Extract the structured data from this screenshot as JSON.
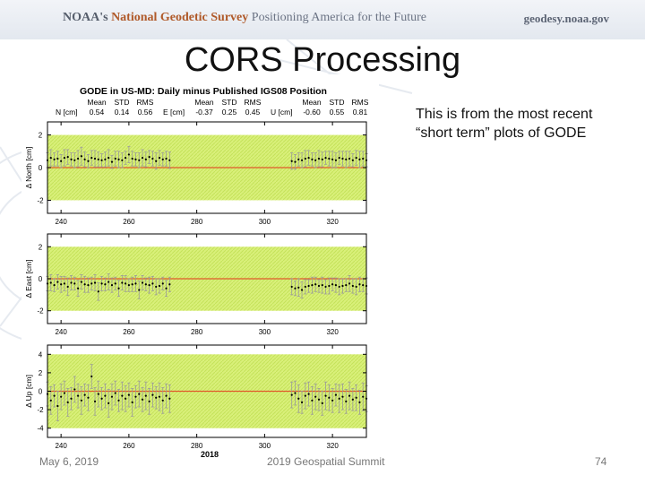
{
  "header": {
    "org_noaa": "NOAA's",
    "org_ngs": "National Geodetic Survey",
    "tagline": "Positioning America for the Future",
    "site": "geodesy.noaa.gov"
  },
  "slide": {
    "title": "CORS Processing",
    "note_line1": "This is from the most recent",
    "note_line2": "“short term” plots of GODE"
  },
  "footer": {
    "date": "May 6, 2019",
    "event": "2019 Geospatial Summit",
    "page": "74"
  },
  "colors": {
    "band": "#d9f07a",
    "zero_line": "#e05a2a",
    "points": "#000000",
    "error_bars": "#9a9a9a"
  },
  "chart_data": {
    "type": "scatter",
    "title": "GODE in US-MD: Daily minus Published IGS08 Position",
    "xlabel": "2018",
    "x_ticks": [
      240,
      260,
      280,
      300,
      320
    ],
    "xlim": [
      236,
      330
    ],
    "stats_header": {
      "mean": "Mean",
      "std": "STD",
      "rms": "RMS"
    },
    "panels": [
      {
        "id": "north",
        "ylabel": "Δ North  [cm]",
        "stat_label": "N [cm]",
        "mean": "0.54",
        "std": "0.14",
        "rms": "0.56",
        "ylim": [
          -2.8,
          2.8
        ],
        "y_ticks": [
          -2,
          0,
          2
        ],
        "band": [
          -2,
          2
        ],
        "x": [
          236,
          237,
          238,
          239,
          240,
          241,
          242,
          243,
          244,
          245,
          246,
          247,
          248,
          249,
          250,
          251,
          252,
          253,
          254,
          255,
          256,
          257,
          258,
          259,
          260,
          261,
          262,
          263,
          264,
          265,
          266,
          267,
          268,
          269,
          270,
          271,
          272,
          308,
          309,
          310,
          311,
          312,
          313,
          314,
          315,
          316,
          317,
          318,
          319,
          320,
          321,
          322,
          323,
          324,
          325,
          326,
          327,
          328,
          329,
          330
        ],
        "y": [
          0.45,
          0.6,
          0.5,
          0.55,
          0.4,
          0.6,
          0.65,
          0.5,
          0.45,
          0.55,
          0.7,
          0.5,
          0.4,
          0.6,
          0.55,
          0.5,
          0.45,
          0.5,
          0.6,
          0.35,
          0.55,
          0.5,
          0.45,
          0.6,
          0.8,
          0.55,
          0.5,
          0.45,
          0.6,
          0.5,
          0.65,
          0.55,
          0.4,
          0.6,
          0.5,
          0.55,
          0.45,
          0.4,
          0.35,
          0.5,
          0.45,
          0.55,
          0.6,
          0.5,
          0.45,
          0.55,
          0.5,
          0.6,
          0.55,
          0.5,
          0.45,
          0.6,
          0.55,
          0.5,
          0.55,
          0.45,
          0.6,
          0.5,
          0.55,
          0.45
        ],
        "err": [
          0.45,
          0.5,
          0.4,
          0.45,
          0.4,
          0.5,
          0.45,
          0.4,
          0.45,
          0.5,
          0.55,
          0.45,
          0.4,
          0.45,
          0.5,
          0.45,
          0.4,
          0.45,
          0.5,
          0.4,
          0.45,
          0.5,
          0.45,
          0.4,
          0.5,
          0.45,
          0.4,
          0.45,
          0.5,
          0.45,
          0.4,
          0.45,
          0.5,
          0.45,
          0.4,
          0.45,
          0.5,
          0.5,
          0.45,
          0.4,
          0.45,
          0.5,
          0.45,
          0.4,
          0.45,
          0.5,
          0.45,
          0.4,
          0.45,
          0.5,
          0.45,
          0.4,
          0.45,
          0.5,
          0.45,
          0.4,
          0.45,
          0.5,
          0.45,
          0.4
        ]
      },
      {
        "id": "east",
        "ylabel": "Δ East  [cm]",
        "stat_label": "E [cm]",
        "mean": "-0.37",
        "std": "0.25",
        "rms": "0.45",
        "ylim": [
          -2.8,
          2.8
        ],
        "y_ticks": [
          -2,
          0,
          2
        ],
        "band": [
          -2,
          2
        ],
        "x": [
          236,
          237,
          238,
          239,
          240,
          241,
          242,
          243,
          244,
          245,
          246,
          247,
          248,
          249,
          250,
          251,
          252,
          253,
          254,
          255,
          256,
          257,
          258,
          259,
          260,
          261,
          262,
          263,
          264,
          265,
          266,
          267,
          268,
          269,
          270,
          271,
          272,
          308,
          309,
          310,
          311,
          312,
          313,
          314,
          315,
          316,
          317,
          318,
          319,
          320,
          321,
          322,
          323,
          324,
          325,
          326,
          327,
          328,
          329,
          330
        ],
        "y": [
          -0.3,
          -0.25,
          -0.4,
          -0.2,
          -0.35,
          -0.3,
          -0.5,
          -0.25,
          -0.3,
          -0.6,
          -0.2,
          -0.35,
          -0.4,
          -0.3,
          -0.25,
          -0.8,
          -0.3,
          -0.35,
          -0.2,
          -0.4,
          -0.3,
          -0.6,
          -0.25,
          -0.3,
          -0.4,
          -0.35,
          -0.3,
          -0.7,
          -0.25,
          -0.35,
          -0.4,
          -0.3,
          -0.5,
          -0.45,
          -0.3,
          -0.6,
          -0.35,
          -0.5,
          -0.6,
          -0.55,
          -0.7,
          -0.5,
          -0.45,
          -0.4,
          -0.35,
          -0.45,
          -0.4,
          -0.5,
          -0.45,
          -0.35,
          -0.4,
          -0.5,
          -0.45,
          -0.4,
          -0.3,
          -0.45,
          -0.5,
          -0.35,
          -0.4,
          -0.45
        ],
        "err": [
          0.45,
          0.5,
          0.4,
          0.45,
          0.5,
          0.45,
          0.55,
          0.45,
          0.4,
          0.5,
          0.45,
          0.5,
          0.45,
          0.4,
          0.5,
          0.55,
          0.45,
          0.4,
          0.5,
          0.45,
          0.4,
          0.5,
          0.45,
          0.5,
          0.4,
          0.45,
          0.5,
          0.55,
          0.45,
          0.4,
          0.5,
          0.45,
          0.5,
          0.45,
          0.4,
          0.5,
          0.45,
          0.5,
          0.45,
          0.55,
          0.5,
          0.45,
          0.4,
          0.5,
          0.45,
          0.4,
          0.5,
          0.45,
          0.5,
          0.4,
          0.45,
          0.5,
          0.45,
          0.4,
          0.5,
          0.45,
          0.5,
          0.45,
          0.4,
          0.5
        ]
      },
      {
        "id": "up",
        "ylabel": "Δ Up  [cm]",
        "stat_label": "U [cm]",
        "mean": "-0.60",
        "std": "0.55",
        "rms": "0.81",
        "ylim": [
          -5,
          5
        ],
        "y_ticks": [
          -4,
          -2,
          0,
          2,
          4
        ],
        "band": [
          -4,
          4
        ],
        "x": [
          236,
          237,
          238,
          239,
          240,
          241,
          242,
          243,
          244,
          245,
          246,
          247,
          248,
          249,
          250,
          251,
          252,
          253,
          254,
          255,
          256,
          257,
          258,
          259,
          260,
          261,
          262,
          263,
          264,
          265,
          266,
          267,
          268,
          269,
          270,
          271,
          272,
          308,
          309,
          310,
          311,
          312,
          313,
          314,
          315,
          316,
          317,
          318,
          319,
          320,
          321,
          322,
          323,
          324,
          325,
          326,
          327,
          328,
          329,
          330
        ],
        "y": [
          -0.3,
          -1.0,
          -0.5,
          -1.6,
          -0.6,
          -0.2,
          -1.2,
          -0.8,
          0.2,
          -0.5,
          -1.0,
          -0.4,
          -0.7,
          1.6,
          -1.1,
          -0.3,
          -0.8,
          -0.5,
          -1.3,
          -0.6,
          -0.2,
          -1.0,
          -0.5,
          -0.8,
          -0.4,
          -1.2,
          -0.6,
          -0.3,
          -0.9,
          -0.5,
          -1.1,
          -0.4,
          -0.7,
          -0.6,
          -1.0,
          -0.5,
          -0.8,
          -0.4,
          -0.2,
          -0.8,
          -1.2,
          -0.5,
          -0.3,
          -1.0,
          -0.6,
          -0.9,
          -1.3,
          -0.5,
          -0.7,
          -1.0,
          -0.4,
          -0.8,
          -0.6,
          -1.1,
          -0.5,
          -0.9,
          -0.7,
          -1.2,
          -0.6,
          -0.8
        ],
        "err": [
          1.3,
          1.5,
          1.2,
          1.6,
          1.4,
          1.3,
          1.5,
          1.2,
          1.4,
          1.3,
          1.5,
          1.2,
          1.4,
          1.3,
          1.5,
          1.4,
          1.2,
          1.3,
          1.5,
          1.4,
          1.3,
          1.2,
          1.5,
          1.4,
          1.3,
          1.5,
          1.2,
          1.4,
          1.3,
          1.5,
          1.4,
          1.3,
          1.2,
          1.5,
          1.4,
          1.3,
          1.5,
          1.4,
          1.3,
          1.5,
          1.2,
          1.4,
          1.3,
          1.5,
          1.4,
          1.2,
          1.3,
          1.5,
          1.4,
          1.3,
          1.2,
          1.5,
          1.4,
          1.3,
          1.5,
          1.2,
          1.4,
          1.3,
          1.5,
          1.4
        ]
      }
    ]
  }
}
